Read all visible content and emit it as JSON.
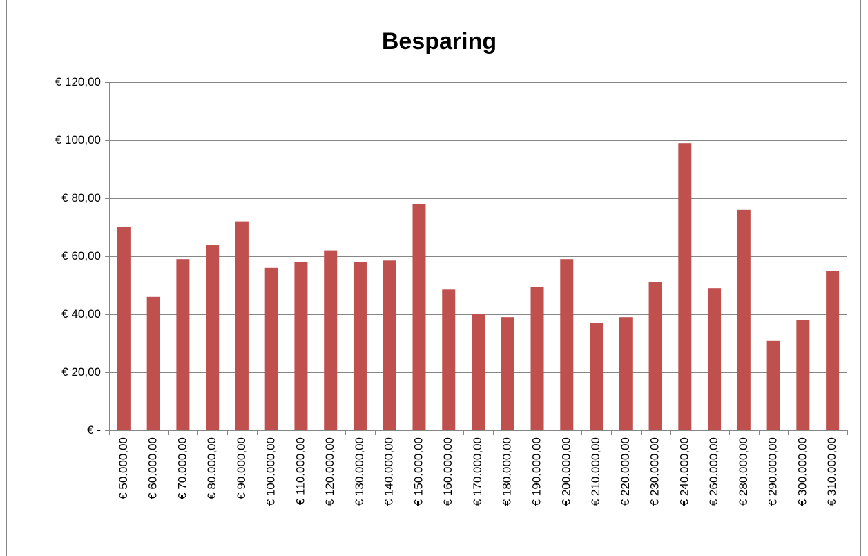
{
  "chart_data": {
    "type": "bar",
    "title": "Besparing",
    "categories": [
      "€ 50.000,00",
      "€ 60.000,00",
      "€ 70.000,00",
      "€ 80.000,00",
      "€ 90.000,00",
      "€ 100.000,00",
      "€ 110.000,00",
      "€ 120.000,00",
      "€ 130.000,00",
      "€ 140.000,00",
      "€ 150.000,00",
      "€ 160.000,00",
      "€ 170.000,00",
      "€ 180.000,00",
      "€ 190.000,00",
      "€ 200.000,00",
      "€ 210.000,00",
      "€ 220.000,00",
      "€ 230.000,00",
      "€ 240.000,00",
      "€ 260.000,00",
      "€ 280.000,00",
      "€ 290.000,00",
      "€ 300.000,00",
      "€ 310.000,00"
    ],
    "values": [
      70,
      46,
      59,
      64,
      72,
      56,
      58,
      62,
      58,
      58.5,
      78,
      48.5,
      40,
      39,
      49.5,
      59,
      37,
      39,
      51,
      99,
      49,
      76,
      31,
      38,
      55
    ],
    "color": "#c0504d",
    "ylim": [
      0,
      120
    ],
    "yticks": [
      {
        "value": 0,
        "label": "€ -"
      },
      {
        "value": 20,
        "label": "€ 20,00"
      },
      {
        "value": 40,
        "label": "€ 40,00"
      },
      {
        "value": 60,
        "label": "€ 60,00"
      },
      {
        "value": 80,
        "label": "€ 80,00"
      },
      {
        "value": 100,
        "label": "€ 100,00"
      },
      {
        "value": 120,
        "label": "€ 120,00"
      }
    ],
    "grid": true
  }
}
